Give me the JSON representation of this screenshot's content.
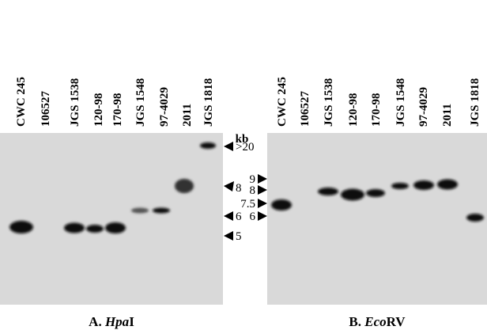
{
  "panels": [
    {
      "lanes": [
        "CWC 245",
        "106527",
        "JGS 1538",
        "120-98",
        "170-98",
        "JGS 1548",
        "97-4029",
        "2011",
        "JGS 1818"
      ],
      "caption": {
        "prefix": "A.",
        "italic": "Hpa",
        "suffix": "I"
      }
    },
    {
      "lanes": [
        "CWC 245",
        "106527",
        "JGS 1538",
        "120-98",
        "170-98",
        "JGS 1548",
        "97-4029",
        "2011",
        "JGS 1818"
      ],
      "caption": {
        "prefix": "B.",
        "italic": "Eco",
        "suffix": "RV"
      }
    }
  ],
  "markers": {
    "unit": "kb",
    "left": [
      ">20",
      "8",
      "6",
      "5"
    ],
    "right": [
      "9",
      "8",
      "7.5",
      "6"
    ]
  }
}
